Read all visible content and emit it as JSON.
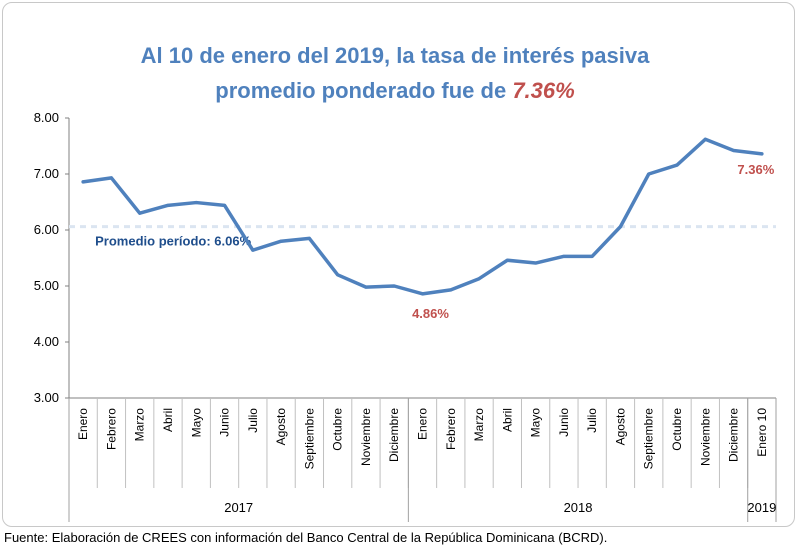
{
  "chart_data": {
    "type": "line",
    "title_line1": "Al 10 de enero del 2019, la tasa de interés pasiva",
    "title_line2_prefix": "promedio ponderado fue de ",
    "title_line2_highlight": "7.36%",
    "categories": [
      "Enero",
      "Febrero",
      "Marzo",
      "Abril",
      "Mayo",
      "Junio",
      "Julio",
      "Agosto",
      "Septiembre",
      "Octubre",
      "Noviembre",
      "Diciembre",
      "Enero",
      "Febrero",
      "Marzo",
      "Abril",
      "Mayo",
      "Junio",
      "Julio",
      "Agosto",
      "Septiembre",
      "Octubre",
      "Noviembre",
      "Diciembre",
      "Enero 10"
    ],
    "series": [
      {
        "name": "Tasa de interés pasiva promedio ponderado",
        "values": [
          6.86,
          6.93,
          6.3,
          6.44,
          6.49,
          6.44,
          5.64,
          5.8,
          5.85,
          5.2,
          4.98,
          5.0,
          4.86,
          4.93,
          5.13,
          5.46,
          5.41,
          5.53,
          5.53,
          6.06,
          7.0,
          7.16,
          7.62,
          7.42,
          7.36
        ],
        "color": "#4f81bd"
      }
    ],
    "average": {
      "value": 6.06,
      "label": "Promedio período: 6.06%",
      "color": "#dbe5f1"
    },
    "annotations": [
      {
        "label": "4.86%",
        "index": 12
      },
      {
        "label": "7.36%",
        "index": 24
      }
    ],
    "y_ticks": [
      "8.00",
      "7.00",
      "6.00",
      "5.00",
      "4.00",
      "3.00"
    ],
    "ylim": [
      3,
      8
    ],
    "years": [
      {
        "label": "2017",
        "start": 0,
        "end": 11
      },
      {
        "label": "2018",
        "start": 12,
        "end": 23
      },
      {
        "label": "2019",
        "start": 24,
        "end": 24
      }
    ]
  },
  "source_note": "Fuente: Elaboración de CREES con información del Banco Central de la República Dominicana (BCRD)."
}
